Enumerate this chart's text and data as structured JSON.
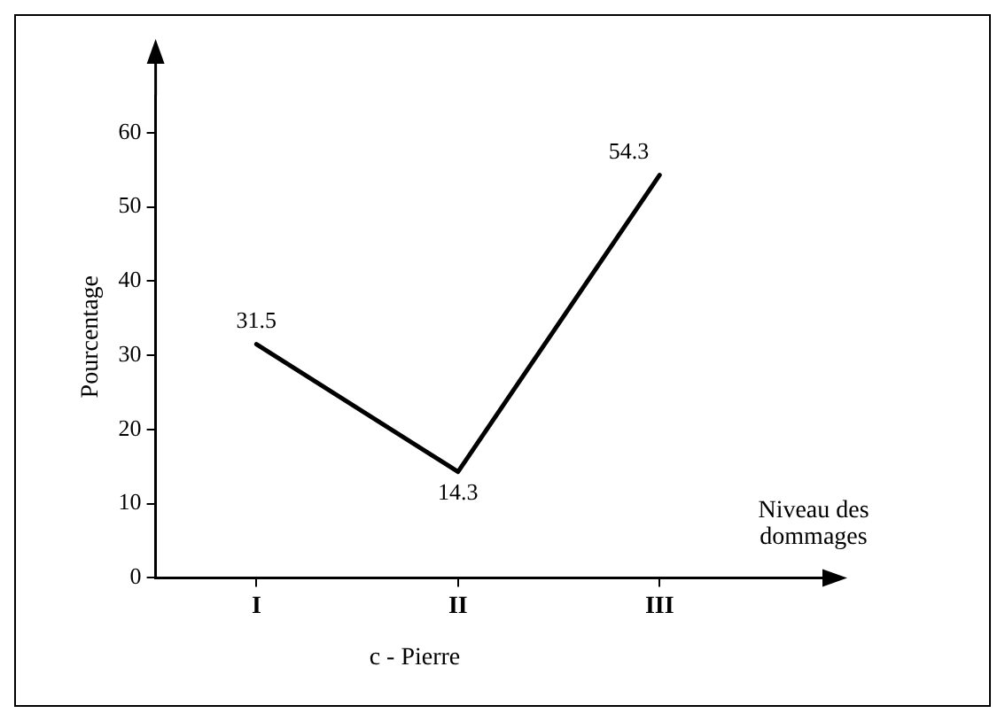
{
  "chart_data": {
    "type": "line",
    "categories": [
      "I",
      "II",
      "III"
    ],
    "series": [
      {
        "color": "#000000",
        "values": [
          31.5,
          14.3,
          54.3
        ]
      }
    ],
    "ylim": [
      0,
      65
    ],
    "yticks": [
      0,
      10,
      20,
      30,
      40,
      50,
      60
    ],
    "xlabel": "Niveau des dommages",
    "ylabel": "Pourcentage",
    "annotations": [
      "c - Pierre"
    ],
    "data_labels": true,
    "grid": false,
    "legend": false,
    "marker": "none",
    "line_style": "solid"
  }
}
